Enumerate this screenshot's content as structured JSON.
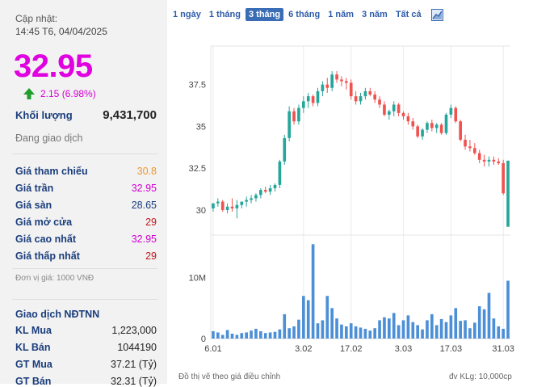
{
  "panel": {
    "updated_label": "Cập nhật:",
    "updated_time": "14:45 T6, 04/04/2025",
    "price": "32.95",
    "change": "2.15 (6.98%)",
    "volume_label": "Khối lượng",
    "volume": "9,431,700",
    "status": "Đang giao dịch",
    "stats": [
      {
        "label": "Giá tham chiếu",
        "value": "30.8",
        "color": "#f0962a"
      },
      {
        "label": "Giá trần",
        "value": "32.95",
        "color": "#d200d2"
      },
      {
        "label": "Giá sàn",
        "value": "28.65",
        "color": "#1a3d7c"
      },
      {
        "label": "Giá mở cửa",
        "value": "29",
        "color": "#c0161c"
      },
      {
        "label": "Giá cao nhất",
        "value": "32.95",
        "color": "#d200d2"
      },
      {
        "label": "Giá thấp nhất",
        "value": "29",
        "color": "#c0161c"
      }
    ],
    "unit_note": "Đơn vị giá: 1000 VNĐ",
    "foreign_title": "Giao dịch NĐTNN",
    "foreign": [
      {
        "label": "KL Mua",
        "value": "1,223,000"
      },
      {
        "label": "KL Bán",
        "value": "1044190"
      },
      {
        "label": "GT Mua",
        "value": "37.21 (Tỷ)"
      },
      {
        "label": "GT Bán",
        "value": "32.31 (Tỷ)"
      }
    ]
  },
  "tabs": [
    "1 ngày",
    "1 tháng",
    "3 tháng",
    "6 tháng",
    "1 năm",
    "3 năm",
    "Tất cả"
  ],
  "active_tab": "3 tháng",
  "icons": {
    "change_arrow": "arrow-up-icon",
    "external": "chart-expand-icon"
  },
  "colors": {
    "up": "#26a69a",
    "down": "#ef5350",
    "accent": "#d200d2"
  },
  "footer": {
    "left": "Đồ thị vẽ theo giá điều chỉnh",
    "right": "đv KLg: 10,000cp"
  },
  "chart_data": {
    "type": "candlestick",
    "price_ticks": [
      "30",
      "32.5",
      "35",
      "37.5"
    ],
    "price_ylim": [
      28.5,
      39.8
    ],
    "volume_ticks": [
      "0",
      "10M"
    ],
    "volume_ylim": [
      0,
      17
    ],
    "x_tick_labels": [
      "6.01",
      "3.02",
      "17.02",
      "3.03",
      "17.03",
      "31.03"
    ],
    "x_tick_index": [
      0,
      19,
      29,
      40,
      50,
      61
    ],
    "candles": [
      [
        30.1,
        30.4,
        29.9,
        30.4
      ],
      [
        30.4,
        30.7,
        30.2,
        30.5
      ],
      [
        30.5,
        30.6,
        29.9,
        30.0
      ],
      [
        30.0,
        30.4,
        29.8,
        30.2
      ],
      [
        30.2,
        30.7,
        29.9,
        30.1
      ],
      [
        30.1,
        30.6,
        29.5,
        30.3
      ],
      [
        30.3,
        30.5,
        30.1,
        30.5
      ],
      [
        30.5,
        30.8,
        30.2,
        30.6
      ],
      [
        30.6,
        30.9,
        30.4,
        30.7
      ],
      [
        30.7,
        31.0,
        30.5,
        30.9
      ],
      [
        30.9,
        31.3,
        30.7,
        31.2
      ],
      [
        31.2,
        31.4,
        31.0,
        31.1
      ],
      [
        31.1,
        31.5,
        30.9,
        31.3
      ],
      [
        31.3,
        31.6,
        31.1,
        31.5
      ],
      [
        31.5,
        33.0,
        31.3,
        32.9
      ],
      [
        32.9,
        34.5,
        32.7,
        34.3
      ],
      [
        34.3,
        36.2,
        34.1,
        35.9
      ],
      [
        35.9,
        36.1,
        35.1,
        35.3
      ],
      [
        35.3,
        36.3,
        35.1,
        36.1
      ],
      [
        36.1,
        36.8,
        35.8,
        36.5
      ],
      [
        36.5,
        37.0,
        36.1,
        36.8
      ],
      [
        36.8,
        36.9,
        36.2,
        36.4
      ],
      [
        36.4,
        37.3,
        36.2,
        37.1
      ],
      [
        37.1,
        37.7,
        36.8,
        37.5
      ],
      [
        37.5,
        37.9,
        37.0,
        37.3
      ],
      [
        37.3,
        38.3,
        37.1,
        38.1
      ],
      [
        38.1,
        38.3,
        37.6,
        37.8
      ],
      [
        37.8,
        38.0,
        37.4,
        37.7
      ],
      [
        37.7,
        37.9,
        37.2,
        37.6
      ],
      [
        37.6,
        37.8,
        36.6,
        36.8
      ],
      [
        36.8,
        37.1,
        36.3,
        36.5
      ],
      [
        36.5,
        37.0,
        36.3,
        36.8
      ],
      [
        36.8,
        37.3,
        36.6,
        37.1
      ],
      [
        37.1,
        37.3,
        36.8,
        36.9
      ],
      [
        36.9,
        37.1,
        36.4,
        36.6
      ],
      [
        36.6,
        36.8,
        36.1,
        36.3
      ],
      [
        36.3,
        36.5,
        35.6,
        35.7
      ],
      [
        35.7,
        36.0,
        35.4,
        35.9
      ],
      [
        35.9,
        36.5,
        35.6,
        36.3
      ],
      [
        36.3,
        36.4,
        35.6,
        35.8
      ],
      [
        35.8,
        35.9,
        35.4,
        35.6
      ],
      [
        35.6,
        35.8,
        35.1,
        35.3
      ],
      [
        35.3,
        35.5,
        34.8,
        35.0
      ],
      [
        35.0,
        35.1,
        34.3,
        34.4
      ],
      [
        34.4,
        34.9,
        34.2,
        34.8
      ],
      [
        34.8,
        35.3,
        34.6,
        35.2
      ],
      [
        35.2,
        35.4,
        34.7,
        34.9
      ],
      [
        34.9,
        35.2,
        34.6,
        35.1
      ],
      [
        35.1,
        35.2,
        34.5,
        34.6
      ],
      [
        34.6,
        35.8,
        34.5,
        35.7
      ],
      [
        35.7,
        36.3,
        35.5,
        36.1
      ],
      [
        36.1,
        36.2,
        35.2,
        35.3
      ],
      [
        35.3,
        35.4,
        34.1,
        34.2
      ],
      [
        34.2,
        34.5,
        33.6,
        33.8
      ],
      [
        33.8,
        34.2,
        33.5,
        33.7
      ],
      [
        33.7,
        34.0,
        33.3,
        33.4
      ],
      [
        33.4,
        33.6,
        32.8,
        33.0
      ],
      [
        33.0,
        33.3,
        32.6,
        32.9
      ],
      [
        32.9,
        33.2,
        32.6,
        33.0
      ],
      [
        33.0,
        33.2,
        32.7,
        32.9
      ],
      [
        32.9,
        33.1,
        32.7,
        32.8
      ],
      [
        32.8,
        33.0,
        30.9,
        31.0
      ],
      [
        29.0,
        32.95,
        29.0,
        32.95
      ]
    ],
    "volumes": [
      1.2,
      1.0,
      0.6,
      1.4,
      0.8,
      0.6,
      0.9,
      1.0,
      1.3,
      1.6,
      1.2,
      0.9,
      1.0,
      1.1,
      1.5,
      4.0,
      1.7,
      2.0,
      3.1,
      7.0,
      6.3,
      15.5,
      2.5,
      3.0,
      7.0,
      5.0,
      3.3,
      2.3,
      2.0,
      2.5,
      2.0,
      1.8,
      1.6,
      1.3,
      1.7,
      3.0,
      3.5,
      3.3,
      4.2,
      2.2,
      3.0,
      3.8,
      2.7,
      2.2,
      1.5,
      3.0,
      4.0,
      2.2,
      3.2,
      2.7,
      3.8,
      5.0,
      2.9,
      3.0,
      1.7,
      2.6,
      5.3,
      4.8,
      7.5,
      3.3,
      2.0,
      1.6,
      9.5
    ]
  }
}
